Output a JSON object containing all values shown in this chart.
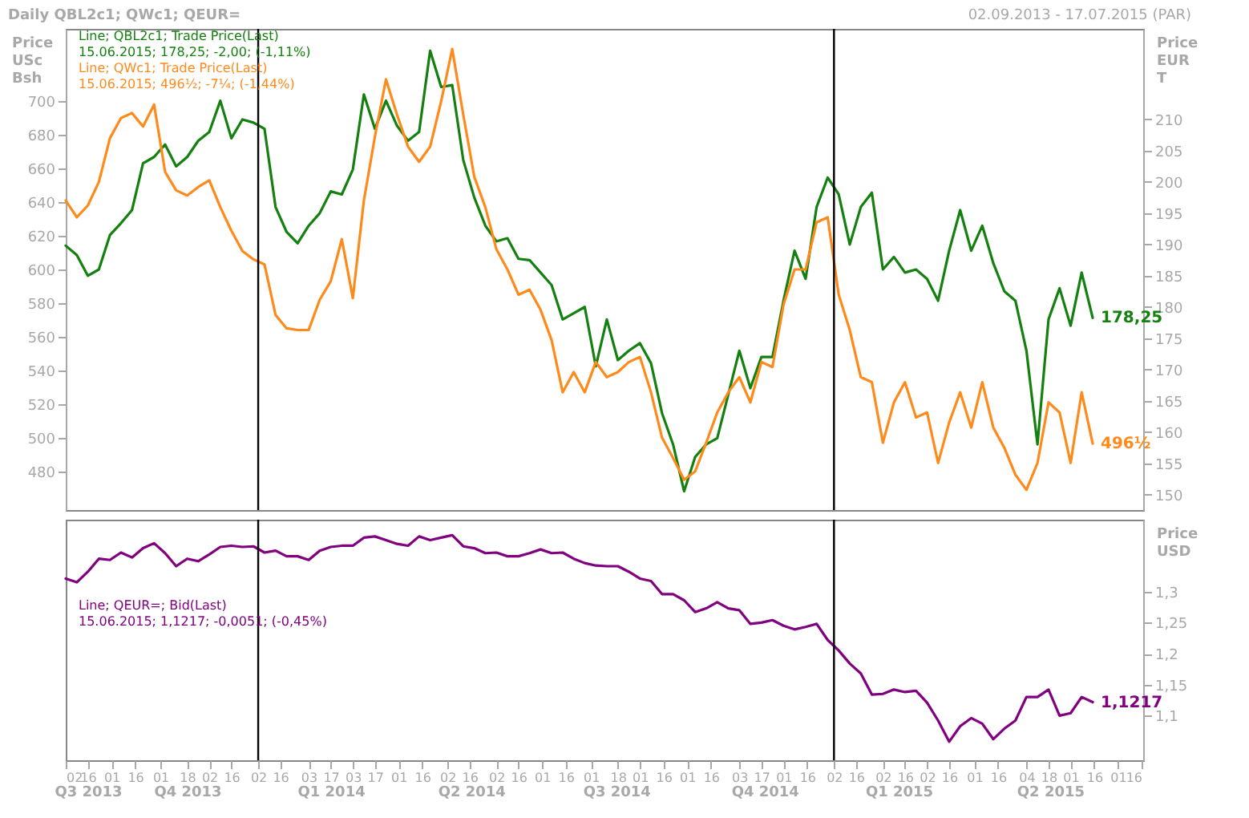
{
  "chart_data": [
    {
      "type": "line",
      "title": "Daily QBL2c1; QWc1; QEUR=",
      "subtitle": "02.09.2013 - 17.07.2015 (PAR)",
      "ylabel": "Price\nUSc\nBsh",
      "y2label": "Price\nEUR\nT",
      "legend": "top left",
      "tick_labels": "y",
      "x": [
        "2013-09-02",
        "2013-09-09",
        "2013-09-16",
        "2013-09-23",
        "2013-09-30",
        "2013-10-07",
        "2013-10-14",
        "2013-10-21",
        "2013-10-28",
        "2013-11-04",
        "2013-11-11",
        "2013-11-18",
        "2013-11-25",
        "2013-12-02",
        "2013-12-09",
        "2013-12-16",
        "2013-12-23",
        "2013-12-30",
        "2014-01-06",
        "2014-01-13",
        "2014-01-20",
        "2014-01-27",
        "2014-02-03",
        "2014-02-10",
        "2014-02-17",
        "2014-02-24",
        "2014-03-03",
        "2014-03-10",
        "2014-03-17",
        "2014-03-24",
        "2014-03-31",
        "2014-04-07",
        "2014-04-14",
        "2014-04-21",
        "2014-04-28",
        "2014-05-05",
        "2014-05-12",
        "2014-05-19",
        "2014-05-26",
        "2014-06-02",
        "2014-06-09",
        "2014-06-16",
        "2014-06-23",
        "2014-06-30",
        "2014-07-07",
        "2014-07-14",
        "2014-07-21",
        "2014-07-28",
        "2014-08-04",
        "2014-08-11",
        "2014-08-18",
        "2014-08-25",
        "2014-09-01",
        "2014-09-08",
        "2014-09-15",
        "2014-09-22",
        "2014-09-29",
        "2014-10-06",
        "2014-10-13",
        "2014-10-20",
        "2014-10-27",
        "2014-11-03",
        "2014-11-10",
        "2014-11-17",
        "2014-11-24",
        "2014-12-01",
        "2014-12-08",
        "2014-12-15",
        "2014-12-22",
        "2014-12-29",
        "2015-01-05",
        "2015-01-12",
        "2015-01-19",
        "2015-01-26",
        "2015-02-02",
        "2015-02-09",
        "2015-02-16",
        "2015-02-23",
        "2015-03-02",
        "2015-03-09",
        "2015-03-16",
        "2015-03-23",
        "2015-03-30",
        "2015-04-06",
        "2015-04-13",
        "2015-04-20",
        "2015-04-27",
        "2015-05-04",
        "2015-05-11",
        "2015-05-18",
        "2015-05-25",
        "2015-06-01",
        "2015-06-08",
        "2015-06-15"
      ],
      "xlim": [
        "2013-09-02",
        "2015-07-17"
      ],
      "ylim": [
        457,
        743
      ],
      "yticks": [
        480,
        500,
        520,
        540,
        560,
        580,
        600,
        620,
        640,
        660,
        680,
        700
      ],
      "y2lim": [
        147.5,
        224.5
      ],
      "y2ticks": [
        150,
        155,
        160,
        165,
        170,
        175,
        180,
        185,
        190,
        195,
        200,
        205,
        210
      ],
      "series": [
        {
          "name": "Line; QBL2c1; Trade Price(Last)",
          "color": "#14800f",
          "axis": "y2",
          "values": [
            189.8,
            188.3,
            185,
            186,
            191.5,
            193.4,
            195.5,
            203,
            204,
            206,
            202.5,
            204,
            206.6,
            208,
            213,
            207,
            210,
            209.5,
            208.5,
            196,
            192,
            190.2,
            193,
            195,
            198.5,
            198,
            202,
            214,
            208.5,
            213,
            209,
            206.6,
            208,
            221,
            215.2,
            215.5,
            203.5,
            197.5,
            193,
            190.5,
            191,
            187.7,
            187.5,
            185.5,
            183.5,
            178,
            179,
            180,
            170.5,
            178,
            171.5,
            173,
            174.2,
            171,
            163,
            158,
            150.5,
            156,
            158,
            159,
            166,
            173,
            167,
            172,
            172,
            181,
            189,
            184.5,
            196,
            200.7,
            198,
            190,
            196,
            198.3,
            186,
            188,
            185.5,
            186,
            184.5,
            181,
            189,
            195.5,
            189,
            193,
            187,
            182.5,
            181,
            173,
            158,
            178,
            183,
            177,
            185.5,
            178.25
          ],
          "value_labels": [
            null,
            null,
            null,
            null,
            null,
            null,
            null,
            null,
            null,
            null,
            null,
            null,
            null,
            null,
            null,
            null,
            null,
            null,
            null,
            null,
            null,
            null,
            null,
            null,
            null,
            null,
            null,
            null,
            null,
            null,
            null,
            null,
            null,
            null,
            null,
            null,
            null,
            null,
            null,
            null,
            null,
            null,
            null,
            null,
            null,
            null,
            null,
            null,
            null,
            null,
            null,
            null,
            null,
            null,
            null,
            null,
            null,
            null,
            null,
            null,
            null,
            null,
            null,
            null,
            null,
            null,
            null,
            null,
            null,
            null,
            null,
            null,
            null,
            null,
            null,
            null,
            null,
            null,
            null,
            null,
            null,
            null,
            null,
            null,
            null,
            null,
            null,
            null,
            null,
            null,
            null,
            null,
            null,
            "178,25"
          ]
        },
        {
          "name": "Line; QWc1; Trade Price(Last)",
          "color": "#ff8a1c",
          "axis": "y",
          "values": [
            641,
            631,
            638,
            652,
            678,
            690,
            693,
            685,
            698,
            658,
            647,
            644,
            649,
            653,
            637,
            623,
            611,
            606,
            603,
            573,
            565,
            564,
            564,
            582,
            593,
            618,
            583,
            641,
            679,
            713,
            692,
            673,
            664,
            673,
            700,
            731,
            692,
            655,
            637,
            612,
            600,
            585,
            588,
            576,
            558,
            527,
            539,
            527,
            545,
            536,
            539,
            545,
            548,
            527,
            500,
            488,
            475,
            480,
            497,
            515,
            527,
            536,
            521,
            545,
            542,
            579,
            600,
            600,
            628,
            631,
            585,
            564,
            536,
            533,
            497,
            521,
            533,
            512,
            515,
            485,
            509,
            527,
            506,
            533,
            506,
            494,
            478,
            469,
            485,
            521,
            515,
            485,
            527,
            496.5
          ],
          "value_labels": [
            null,
            null,
            null,
            null,
            null,
            null,
            null,
            null,
            null,
            null,
            null,
            null,
            null,
            null,
            null,
            null,
            null,
            null,
            null,
            null,
            null,
            null,
            null,
            null,
            null,
            null,
            null,
            null,
            null,
            null,
            null,
            null,
            null,
            null,
            null,
            null,
            null,
            null,
            null,
            null,
            null,
            null,
            null,
            null,
            null,
            null,
            null,
            null,
            null,
            null,
            null,
            null,
            null,
            null,
            null,
            null,
            null,
            null,
            null,
            null,
            null,
            null,
            null,
            null,
            null,
            null,
            null,
            null,
            null,
            null,
            null,
            null,
            null,
            null,
            null,
            null,
            null,
            null,
            null,
            null,
            null,
            null,
            null,
            null,
            null,
            null,
            null,
            null,
            null,
            null,
            null,
            null,
            null,
            "496½"
          ]
        }
      ],
      "ref_lines": [
        {
          "axis": "x",
          "value": "2014-01-02",
          "color": "#000000"
        },
        {
          "axis": "x",
          "value": "2015-01-02",
          "color": "#000000"
        }
      ],
      "annotations": [
        "15.06.2015; 178,25; -2,00; (-1,11%)",
        "15.06.2015; 496½; -7¼; (-1,44%)"
      ]
    },
    {
      "type": "line",
      "y2label": "Price\nUSD",
      "legend": "top left",
      "x": [
        "2013-09-02",
        "2013-09-09",
        "2013-09-16",
        "2013-09-23",
        "2013-09-30",
        "2013-10-07",
        "2013-10-14",
        "2013-10-21",
        "2013-10-28",
        "2013-11-04",
        "2013-11-11",
        "2013-11-18",
        "2013-11-25",
        "2013-12-02",
        "2013-12-09",
        "2013-12-16",
        "2013-12-23",
        "2013-12-30",
        "2014-01-06",
        "2014-01-13",
        "2014-01-20",
        "2014-01-27",
        "2014-02-03",
        "2014-02-10",
        "2014-02-17",
        "2014-02-24",
        "2014-03-03",
        "2014-03-10",
        "2014-03-17",
        "2014-03-24",
        "2014-03-31",
        "2014-04-07",
        "2014-04-14",
        "2014-04-21",
        "2014-04-28",
        "2014-05-05",
        "2014-05-12",
        "2014-05-19",
        "2014-05-26",
        "2014-06-02",
        "2014-06-09",
        "2014-06-16",
        "2014-06-23",
        "2014-06-30",
        "2014-07-07",
        "2014-07-14",
        "2014-07-21",
        "2014-07-28",
        "2014-08-04",
        "2014-08-11",
        "2014-08-18",
        "2014-08-25",
        "2014-09-01",
        "2014-09-08",
        "2014-09-15",
        "2014-09-22",
        "2014-09-29",
        "2014-10-06",
        "2014-10-13",
        "2014-10-20",
        "2014-10-27",
        "2014-11-03",
        "2014-11-10",
        "2014-11-17",
        "2014-11-24",
        "2014-12-01",
        "2014-12-08",
        "2014-12-15",
        "2014-12-22",
        "2014-12-29",
        "2015-01-05",
        "2015-01-12",
        "2015-01-19",
        "2015-01-26",
        "2015-02-02",
        "2015-02-09",
        "2015-02-16",
        "2015-02-23",
        "2015-03-02",
        "2015-03-09",
        "2015-03-16",
        "2015-03-23",
        "2015-03-30",
        "2015-04-06",
        "2015-04-13",
        "2015-04-20",
        "2015-04-27",
        "2015-05-04",
        "2015-05-11",
        "2015-05-18",
        "2015-05-25",
        "2015-06-01",
        "2015-06-08",
        "2015-06-15"
      ],
      "xlim": [
        "2013-09-02",
        "2015-07-17"
      ],
      "xticks": [
        {
          "value": "2013-09-02",
          "label": "02"
        },
        {
          "value": "2013-09-16",
          "label": "16"
        },
        {
          "value": "2013-10-01",
          "label": "01"
        },
        {
          "value": "2013-10-16",
          "label": "16"
        },
        {
          "value": "2013-11-01",
          "label": "01"
        },
        {
          "value": "2013-11-18",
          "label": "18"
        },
        {
          "value": "2013-12-02",
          "label": "02"
        },
        {
          "value": "2013-12-16",
          "label": "16"
        },
        {
          "value": "2014-01-02",
          "label": "02"
        },
        {
          "value": "2014-01-16",
          "label": "16"
        },
        {
          "value": "2014-02-03",
          "label": "03"
        },
        {
          "value": "2014-02-17",
          "label": "17"
        },
        {
          "value": "2014-03-03",
          "label": "03"
        },
        {
          "value": "2014-03-17",
          "label": "17"
        },
        {
          "value": "2014-04-01",
          "label": "01"
        },
        {
          "value": "2014-04-16",
          "label": "16"
        },
        {
          "value": "2014-05-02",
          "label": "02"
        },
        {
          "value": "2014-05-16",
          "label": "16"
        },
        {
          "value": "2014-06-02",
          "label": "02"
        },
        {
          "value": "2014-06-16",
          "label": "16"
        },
        {
          "value": "2014-07-01",
          "label": "01"
        },
        {
          "value": "2014-07-16",
          "label": "16"
        },
        {
          "value": "2014-08-01",
          "label": "01"
        },
        {
          "value": "2014-08-18",
          "label": "18"
        },
        {
          "value": "2014-09-01",
          "label": "01"
        },
        {
          "value": "2014-09-16",
          "label": "16"
        },
        {
          "value": "2014-10-01",
          "label": "01"
        },
        {
          "value": "2014-10-16",
          "label": "16"
        },
        {
          "value": "2014-11-03",
          "label": "03"
        },
        {
          "value": "2014-11-17",
          "label": "17"
        },
        {
          "value": "2014-12-01",
          "label": "01"
        },
        {
          "value": "2014-12-16",
          "label": "16"
        },
        {
          "value": "2015-01-02",
          "label": "02"
        },
        {
          "value": "2015-01-16",
          "label": "16"
        },
        {
          "value": "2015-02-02",
          "label": "02"
        },
        {
          "value": "2015-02-16",
          "label": "16"
        },
        {
          "value": "2015-03-02",
          "label": "02"
        },
        {
          "value": "2015-03-16",
          "label": "16"
        },
        {
          "value": "2015-04-01",
          "label": "01"
        },
        {
          "value": "2015-04-16",
          "label": "16"
        },
        {
          "value": "2015-05-04",
          "label": "04"
        },
        {
          "value": "2015-05-18",
          "label": "18"
        },
        {
          "value": "2015-06-01",
          "label": "01"
        },
        {
          "value": "2015-06-16",
          "label": "16"
        },
        {
          "value": "2015-07-01",
          "label": "01"
        },
        {
          "value": "2015-07-16",
          "label": "16"
        }
      ],
      "y2lim": [
        1.028,
        1.416
      ],
      "y2ticks": [
        {
          "value": 1.1,
          "label": "1,1"
        },
        {
          "value": 1.15,
          "label": "1,15"
        },
        {
          "value": 1.2,
          "label": "1,2"
        },
        {
          "value": 1.25,
          "label": "1,25"
        },
        {
          "value": 1.3,
          "label": "1,3"
        }
      ],
      "series": [
        {
          "name": "Line; QEUR=; Bid(Last)",
          "color": "#800080",
          "axis": "y2",
          "values": [
            1.321,
            1.315,
            1.332,
            1.353,
            1.351,
            1.363,
            1.355,
            1.37,
            1.378,
            1.362,
            1.341,
            1.353,
            1.349,
            1.36,
            1.372,
            1.374,
            1.372,
            1.373,
            1.363,
            1.366,
            1.357,
            1.357,
            1.351,
            1.366,
            1.372,
            1.374,
            1.374,
            1.387,
            1.389,
            1.383,
            1.377,
            1.374,
            1.389,
            1.383,
            1.387,
            1.391,
            1.373,
            1.37,
            1.362,
            1.363,
            1.357,
            1.357,
            1.362,
            1.368,
            1.362,
            1.363,
            1.353,
            1.346,
            1.342,
            1.341,
            1.341,
            1.332,
            1.321,
            1.317,
            1.296,
            1.296,
            1.286,
            1.267,
            1.273,
            1.283,
            1.273,
            1.27,
            1.248,
            1.25,
            1.254,
            1.245,
            1.239,
            1.243,
            1.248,
            1.222,
            1.205,
            1.184,
            1.168,
            1.134,
            1.135,
            1.142,
            1.138,
            1.14,
            1.121,
            1.092,
            1.058,
            1.083,
            1.096,
            1.087,
            1.062,
            1.079,
            1.092,
            1.13,
            1.13,
            1.142,
            1.1,
            1.104,
            1.13,
            1.1217
          ],
          "value_labels": [
            null,
            null,
            null,
            null,
            null,
            null,
            null,
            null,
            null,
            null,
            null,
            null,
            null,
            null,
            null,
            null,
            null,
            null,
            null,
            null,
            null,
            null,
            null,
            null,
            null,
            null,
            null,
            null,
            null,
            null,
            null,
            null,
            null,
            null,
            null,
            null,
            null,
            null,
            null,
            null,
            null,
            null,
            null,
            null,
            null,
            null,
            null,
            null,
            null,
            null,
            null,
            null,
            null,
            null,
            null,
            null,
            null,
            null,
            null,
            null,
            null,
            null,
            null,
            null,
            null,
            null,
            null,
            null,
            null,
            null,
            null,
            null,
            null,
            null,
            null,
            null,
            null,
            null,
            null,
            null,
            null,
            null,
            null,
            null,
            null,
            null,
            null,
            null,
            null,
            null,
            null,
            null,
            null,
            "1,1217"
          ]
        }
      ],
      "ref_lines": [
        {
          "axis": "x",
          "value": "2014-01-02",
          "color": "#000000"
        },
        {
          "axis": "x",
          "value": "2015-01-02",
          "color": "#000000"
        }
      ],
      "annotations": [
        "15.06.2015; 1,1217; -0,0051; (-0,45%)"
      ],
      "x2lim": [
        "2013-09-02",
        "2015-07-17"
      ],
      "x2ticks": [
        {
          "value": "2013-09-16",
          "label": "Q3 2013"
        },
        {
          "value": "2013-11-18",
          "label": "Q4 2013"
        },
        {
          "value": "2014-02-17",
          "label": "Q1 2014"
        },
        {
          "value": "2014-05-17",
          "label": "Q2 2014"
        },
        {
          "value": "2014-08-17",
          "label": "Q3 2014"
        },
        {
          "value": "2014-11-19",
          "label": "Q4 2014"
        },
        {
          "value": "2015-02-12",
          "label": "Q1 2015"
        },
        {
          "value": "2015-05-19",
          "label": "Q2 2015"
        }
      ]
    }
  ]
}
